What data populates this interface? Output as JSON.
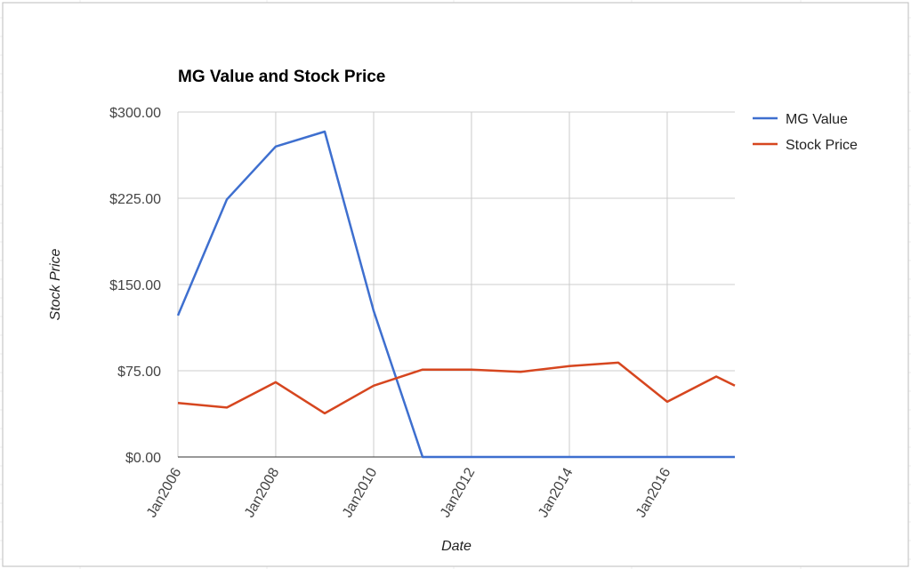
{
  "chart_data": {
    "type": "line",
    "title": "MG Value and Stock Price",
    "xlabel": "Date",
    "ylabel": "Stock Price",
    "x_range": [
      "2006-01-01",
      "2017-05-20"
    ],
    "x_tick_labels": [
      "Jan2006",
      "Jan2008",
      "Jan2010",
      "Jan2012",
      "Jan2014",
      "Jan2016"
    ],
    "x_tick_dates": [
      "2006-01-01",
      "2008-01-01",
      "2010-01-01",
      "2012-01-01",
      "2014-01-01",
      "2016-01-01"
    ],
    "ylim": [
      0,
      300
    ],
    "y_ticks": [
      0,
      75,
      150,
      225,
      300
    ],
    "y_tick_labels": [
      "$0.00",
      "$75.00",
      "$150.00",
      "$225.00",
      "$300.00"
    ],
    "grid": true,
    "legend_position": "right",
    "series": [
      {
        "name": "MG Value",
        "color": "#3e6fcf",
        "points": [
          {
            "x": "2006-01-01",
            "y": 123
          },
          {
            "x": "2007-01-01",
            "y": 224
          },
          {
            "x": "2008-01-01",
            "y": 270
          },
          {
            "x": "2009-01-01",
            "y": 283
          },
          {
            "x": "2010-01-01",
            "y": 127
          },
          {
            "x": "2011-01-01",
            "y": 0
          },
          {
            "x": "2012-01-01",
            "y": 0
          },
          {
            "x": "2013-01-01",
            "y": 0
          },
          {
            "x": "2014-01-01",
            "y": 0
          },
          {
            "x": "2015-01-01",
            "y": 0
          },
          {
            "x": "2016-01-01",
            "y": 0
          },
          {
            "x": "2017-01-01",
            "y": 0
          },
          {
            "x": "2017-05-20",
            "y": 0
          }
        ]
      },
      {
        "name": "Stock Price",
        "color": "#d6461f",
        "points": [
          {
            "x": "2006-01-01",
            "y": 47
          },
          {
            "x": "2007-01-01",
            "y": 43
          },
          {
            "x": "2008-01-01",
            "y": 65
          },
          {
            "x": "2009-01-01",
            "y": 38
          },
          {
            "x": "2010-01-01",
            "y": 62
          },
          {
            "x": "2011-01-01",
            "y": 76
          },
          {
            "x": "2012-01-01",
            "y": 76
          },
          {
            "x": "2013-01-01",
            "y": 74
          },
          {
            "x": "2014-01-01",
            "y": 79
          },
          {
            "x": "2015-01-01",
            "y": 82
          },
          {
            "x": "2016-01-01",
            "y": 48
          },
          {
            "x": "2017-01-01",
            "y": 70
          },
          {
            "x": "2017-05-20",
            "y": 62
          }
        ]
      }
    ]
  }
}
